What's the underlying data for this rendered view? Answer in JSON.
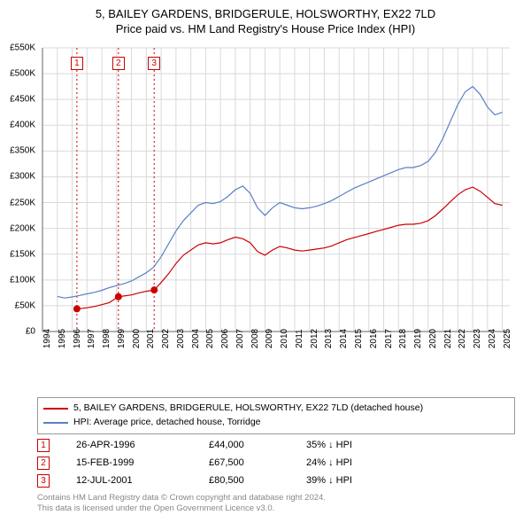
{
  "title": {
    "line1": "5, BAILEY GARDENS, BRIDGERULE, HOLSWORTHY, EX22 7LD",
    "line2": "Price paid vs. HM Land Registry's House Price Index (HPI)"
  },
  "chart": {
    "type": "line",
    "x_range": [
      1994,
      2025.5
    ],
    "y_range": [
      0,
      550000
    ],
    "y_ticks": [
      0,
      50000,
      100000,
      150000,
      200000,
      250000,
      300000,
      350000,
      400000,
      450000,
      500000,
      550000
    ],
    "y_tick_labels": [
      "£0",
      "£50K",
      "£100K",
      "£150K",
      "£200K",
      "£250K",
      "£300K",
      "£350K",
      "£400K",
      "£450K",
      "£500K",
      "£550K"
    ],
    "x_ticks": [
      1994,
      1995,
      1996,
      1997,
      1998,
      1999,
      2000,
      2001,
      2002,
      2003,
      2004,
      2005,
      2006,
      2007,
      2008,
      2009,
      2010,
      2011,
      2012,
      2013,
      2014,
      2015,
      2016,
      2017,
      2018,
      2019,
      2020,
      2021,
      2022,
      2023,
      2024,
      2025
    ],
    "background_color": "#ffffff",
    "grid_color": "#d9d9d9",
    "axis_color": "#666666",
    "marker_line_color": "#cc0000",
    "series": {
      "property": {
        "color": "#cc0000",
        "width": 1.2,
        "label": "5, BAILEY GARDENS, BRIDGERULE, HOLSWORTHY, EX22 7LD (detached house)",
        "data": [
          [
            1996.32,
            44000
          ],
          [
            1996.5,
            44300
          ],
          [
            1997,
            46000
          ],
          [
            1997.5,
            48500
          ],
          [
            1998,
            52000
          ],
          [
            1998.5,
            56000
          ],
          [
            1999.12,
            67500
          ],
          [
            1999.5,
            69000
          ],
          [
            2000,
            71000
          ],
          [
            2000.5,
            75000
          ],
          [
            2001,
            78000
          ],
          [
            2001.53,
            80500
          ],
          [
            2002,
            95000
          ],
          [
            2002.5,
            112000
          ],
          [
            2003,
            132000
          ],
          [
            2003.5,
            148000
          ],
          [
            2004,
            158000
          ],
          [
            2004.5,
            168000
          ],
          [
            2005,
            172000
          ],
          [
            2005.5,
            170000
          ],
          [
            2006,
            172000
          ],
          [
            2006.5,
            178000
          ],
          [
            2007,
            183000
          ],
          [
            2007.5,
            180000
          ],
          [
            2008,
            172000
          ],
          [
            2008.5,
            155000
          ],
          [
            2009,
            148000
          ],
          [
            2009.5,
            158000
          ],
          [
            2010,
            165000
          ],
          [
            2010.5,
            162000
          ],
          [
            2011,
            158000
          ],
          [
            2011.5,
            156000
          ],
          [
            2012,
            158000
          ],
          [
            2012.5,
            160000
          ],
          [
            2013,
            162000
          ],
          [
            2013.5,
            166000
          ],
          [
            2014,
            172000
          ],
          [
            2014.5,
            178000
          ],
          [
            2015,
            182000
          ],
          [
            2015.5,
            186000
          ],
          [
            2016,
            190000
          ],
          [
            2016.5,
            194000
          ],
          [
            2017,
            198000
          ],
          [
            2017.5,
            202000
          ],
          [
            2018,
            206000
          ],
          [
            2018.5,
            208000
          ],
          [
            2019,
            208000
          ],
          [
            2019.5,
            210000
          ],
          [
            2020,
            215000
          ],
          [
            2020.5,
            225000
          ],
          [
            2021,
            238000
          ],
          [
            2021.5,
            252000
          ],
          [
            2022,
            265000
          ],
          [
            2022.5,
            275000
          ],
          [
            2023,
            280000
          ],
          [
            2023.5,
            272000
          ],
          [
            2024,
            260000
          ],
          [
            2024.5,
            248000
          ],
          [
            2025,
            245000
          ]
        ]
      },
      "hpi": {
        "color": "#5b7fc7",
        "width": 1.2,
        "label": "HPI: Average price, detached house, Torridge",
        "data": [
          [
            1995,
            68000
          ],
          [
            1995.5,
            65000
          ],
          [
            1996,
            67000
          ],
          [
            1996.5,
            70000
          ],
          [
            1997,
            73000
          ],
          [
            1997.5,
            76000
          ],
          [
            1998,
            80000
          ],
          [
            1998.5,
            85000
          ],
          [
            1999,
            89000
          ],
          [
            1999.5,
            93000
          ],
          [
            2000,
            98000
          ],
          [
            2000.5,
            106000
          ],
          [
            2001,
            114000
          ],
          [
            2001.5,
            125000
          ],
          [
            2002,
            145000
          ],
          [
            2002.5,
            170000
          ],
          [
            2003,
            195000
          ],
          [
            2003.5,
            215000
          ],
          [
            2004,
            230000
          ],
          [
            2004.5,
            245000
          ],
          [
            2005,
            250000
          ],
          [
            2005.5,
            248000
          ],
          [
            2006,
            252000
          ],
          [
            2006.5,
            262000
          ],
          [
            2007,
            275000
          ],
          [
            2007.5,
            282000
          ],
          [
            2008,
            268000
          ],
          [
            2008.5,
            240000
          ],
          [
            2009,
            225000
          ],
          [
            2009.5,
            240000
          ],
          [
            2010,
            250000
          ],
          [
            2010.5,
            245000
          ],
          [
            2011,
            240000
          ],
          [
            2011.5,
            238000
          ],
          [
            2012,
            240000
          ],
          [
            2012.5,
            243000
          ],
          [
            2013,
            248000
          ],
          [
            2013.5,
            254000
          ],
          [
            2014,
            262000
          ],
          [
            2014.5,
            270000
          ],
          [
            2015,
            278000
          ],
          [
            2015.5,
            284000
          ],
          [
            2016,
            290000
          ],
          [
            2016.5,
            296000
          ],
          [
            2017,
            302000
          ],
          [
            2017.5,
            308000
          ],
          [
            2018,
            314000
          ],
          [
            2018.5,
            318000
          ],
          [
            2019,
            318000
          ],
          [
            2019.5,
            322000
          ],
          [
            2020,
            330000
          ],
          [
            2020.5,
            348000
          ],
          [
            2021,
            375000
          ],
          [
            2021.5,
            408000
          ],
          [
            2022,
            440000
          ],
          [
            2022.5,
            465000
          ],
          [
            2023,
            475000
          ],
          [
            2023.5,
            460000
          ],
          [
            2024,
            435000
          ],
          [
            2024.5,
            420000
          ],
          [
            2025,
            425000
          ]
        ]
      }
    },
    "sale_markers": [
      {
        "num": "1",
        "x": 1996.32,
        "y": 44000
      },
      {
        "num": "2",
        "x": 1999.12,
        "y": 67500
      },
      {
        "num": "3",
        "x": 2001.53,
        "y": 80500
      }
    ]
  },
  "legend": {
    "rows": [
      {
        "color": "#cc0000",
        "text": "5, BAILEY GARDENS, BRIDGERULE, HOLSWORTHY, EX22 7LD (detached house)"
      },
      {
        "color": "#5b7fc7",
        "text": "HPI: Average price, detached house, Torridge"
      }
    ]
  },
  "sales_table": [
    {
      "num": "1",
      "date": "26-APR-1996",
      "price": "£44,000",
      "delta": "35% ↓ HPI"
    },
    {
      "num": "2",
      "date": "15-FEB-1999",
      "price": "£67,500",
      "delta": "24% ↓ HPI"
    },
    {
      "num": "3",
      "date": "12-JUL-2001",
      "price": "£80,500",
      "delta": "39% ↓ HPI"
    }
  ],
  "footer": {
    "line1": "Contains HM Land Registry data © Crown copyright and database right 2024.",
    "line2": "This data is licensed under the Open Government Licence v3.0."
  }
}
